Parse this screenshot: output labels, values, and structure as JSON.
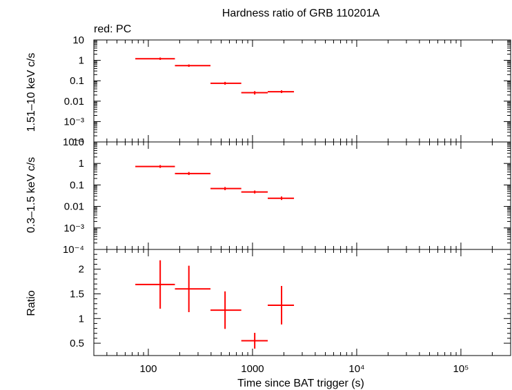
{
  "chart_data": [
    {
      "type": "scatter",
      "panel": "hard",
      "title": "Hardness ratio of GRB 110201A",
      "legend": "red: PC",
      "ylabel": "1.51–10 keV c/s",
      "xscale": "log",
      "yscale": "log",
      "xlim": [
        30,
        300000
      ],
      "ylim": [
        0.0001,
        10
      ],
      "ytick_labels": [
        "10",
        "1",
        "0.1",
        "0.01",
        "10⁻³",
        "10⁻⁴"
      ],
      "series": [
        {
          "name": "PC",
          "color": "#ff0000",
          "points": [
            {
              "x": 130,
              "xlo": 75,
              "xhi": 180,
              "y": 1.2,
              "ylo": 1.05,
              "yhi": 1.38
            },
            {
              "x": 245,
              "xlo": 180,
              "xhi": 395,
              "y": 0.55,
              "ylo": 0.48,
              "yhi": 0.63
            },
            {
              "x": 545,
              "xlo": 395,
              "xhi": 780,
              "y": 0.075,
              "ylo": 0.064,
              "yhi": 0.088
            },
            {
              "x": 1050,
              "xlo": 780,
              "xhi": 1400,
              "y": 0.026,
              "ylo": 0.021,
              "yhi": 0.031
            },
            {
              "x": 1900,
              "xlo": 1400,
              "xhi": 2500,
              "y": 0.029,
              "ylo": 0.025,
              "yhi": 0.034
            }
          ]
        }
      ]
    },
    {
      "type": "scatter",
      "panel": "soft",
      "ylabel": "0.3–1.5 keV c/s",
      "xscale": "log",
      "yscale": "log",
      "xlim": [
        30,
        300000
      ],
      "ylim": [
        0.0001,
        10
      ],
      "ytick_labels": [
        "10",
        "1",
        "0.1",
        "0.01",
        "10⁻³",
        "10⁻⁴"
      ],
      "series": [
        {
          "name": "PC",
          "color": "#ff0000",
          "points": [
            {
              "x": 130,
              "xlo": 75,
              "xhi": 180,
              "y": 0.72,
              "ylo": 0.62,
              "yhi": 0.84
            },
            {
              "x": 245,
              "xlo": 180,
              "xhi": 395,
              "y": 0.34,
              "ylo": 0.29,
              "yhi": 0.4
            },
            {
              "x": 545,
              "xlo": 395,
              "xhi": 780,
              "y": 0.068,
              "ylo": 0.057,
              "yhi": 0.08
            },
            {
              "x": 1050,
              "xlo": 780,
              "xhi": 1400,
              "y": 0.047,
              "ylo": 0.04,
              "yhi": 0.055
            },
            {
              "x": 1900,
              "xlo": 1400,
              "xhi": 2500,
              "y": 0.024,
              "ylo": 0.02,
              "yhi": 0.029
            }
          ]
        }
      ]
    },
    {
      "type": "scatter",
      "panel": "ratio",
      "ylabel": "Ratio",
      "xlabel": "Time since BAT trigger (s)",
      "xscale": "log",
      "yscale": "linear",
      "xlim": [
        30,
        300000
      ],
      "ylim": [
        0.25,
        2.4
      ],
      "ytick_labels": [
        "2",
        "1.5",
        "1",
        "0.5"
      ],
      "xtick_labels": [
        "100",
        "1000",
        "10⁴",
        "10⁵"
      ],
      "series": [
        {
          "name": "PC",
          "color": "#ff0000",
          "points": [
            {
              "x": 130,
              "xlo": 75,
              "xhi": 180,
              "y": 1.69,
              "ylo": 1.2,
              "yhi": 2.18
            },
            {
              "x": 245,
              "xlo": 180,
              "xhi": 395,
              "y": 1.6,
              "ylo": 1.13,
              "yhi": 2.07
            },
            {
              "x": 545,
              "xlo": 395,
              "xhi": 780,
              "y": 1.17,
              "ylo": 0.79,
              "yhi": 1.55
            },
            {
              "x": 1050,
              "xlo": 780,
              "xhi": 1400,
              "y": 0.55,
              "ylo": 0.39,
              "yhi": 0.71
            },
            {
              "x": 1900,
              "xlo": 1400,
              "xhi": 2500,
              "y": 1.27,
              "ylo": 0.88,
              "yhi": 1.66
            }
          ]
        }
      ]
    }
  ]
}
